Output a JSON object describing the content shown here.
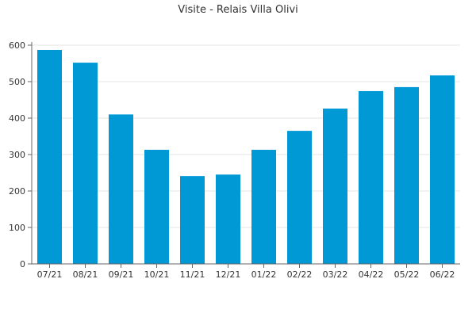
{
  "chart_data": {
    "type": "bar",
    "title": "Visite - Relais Villa Olivi",
    "categories": [
      "07/21",
      "08/21",
      "09/21",
      "10/21",
      "11/21",
      "12/21",
      "01/22",
      "02/22",
      "03/22",
      "04/22",
      "05/22",
      "06/22"
    ],
    "values": [
      587,
      552,
      410,
      313,
      241,
      245,
      313,
      365,
      426,
      474,
      485,
      517
    ],
    "yticks": [
      "0",
      "100",
      "200",
      "300",
      "400",
      "500",
      "600"
    ],
    "ylim": [
      0,
      600
    ],
    "grid": true,
    "bar_color": "#0099d6"
  }
}
